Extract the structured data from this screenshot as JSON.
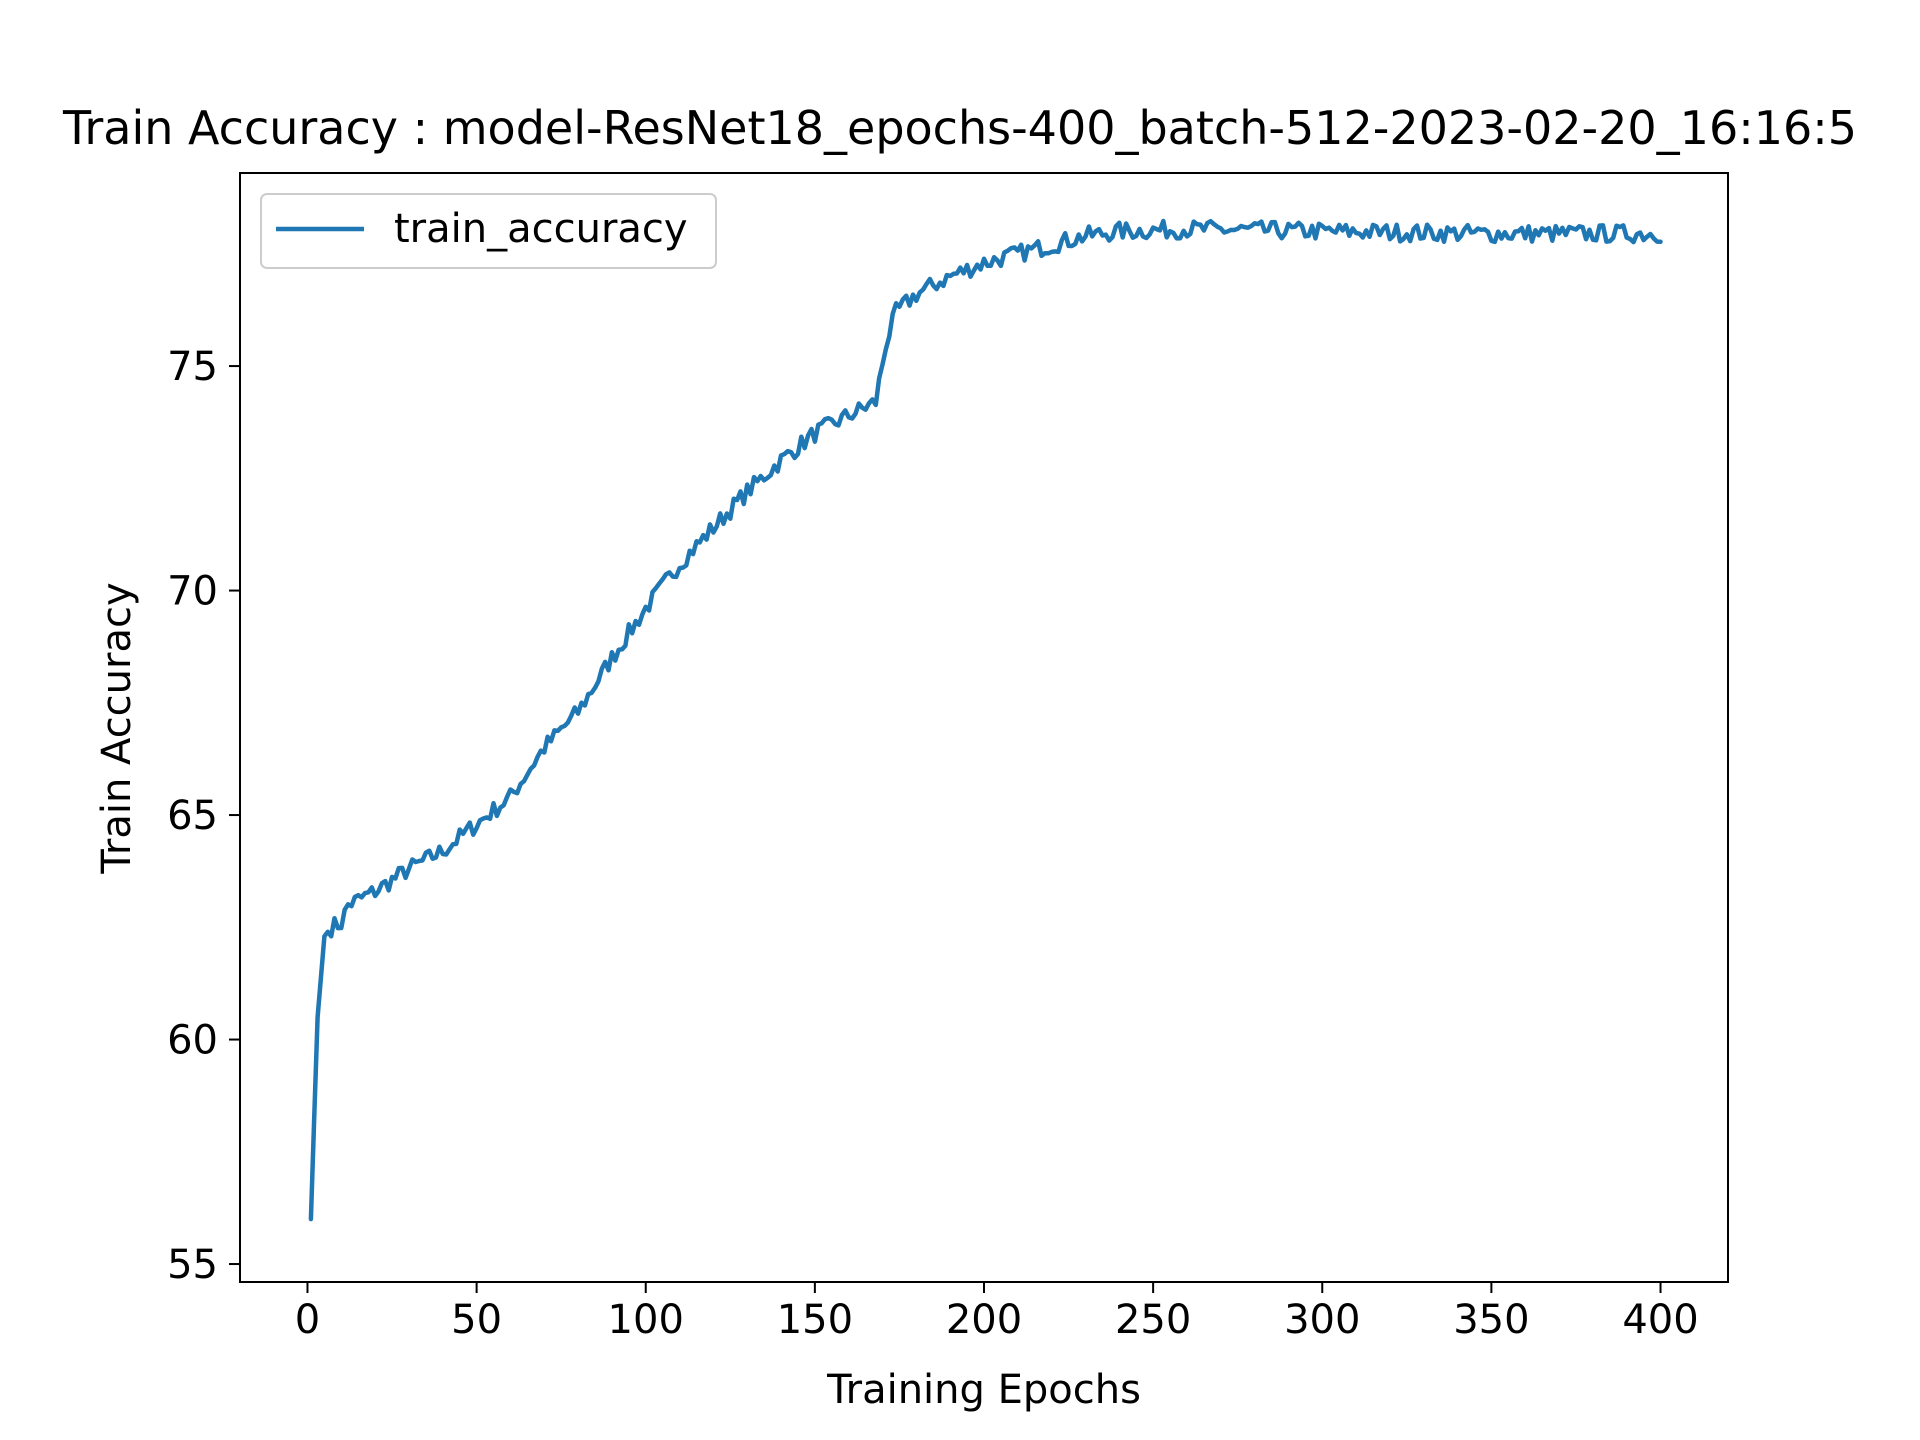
{
  "chart_data": {
    "type": "line",
    "title": "Train Accuracy : model-ResNet18_epochs-400_batch-512-2023-02-20_16:16:5",
    "xlabel": "Training Epochs",
    "ylabel": "Train Accuracy",
    "xlim": [
      -19.95,
      419.95
    ],
    "ylim": [
      54.6,
      79.3
    ],
    "xticks": [
      0,
      50,
      100,
      150,
      200,
      250,
      300,
      350,
      400
    ],
    "yticks": [
      55,
      60,
      65,
      70,
      75
    ],
    "grid": false,
    "legend": {
      "placement": "top-left",
      "entries": [
        "train_accuracy"
      ]
    },
    "colors": {
      "train_accuracy": "#1f77b4"
    },
    "series": [
      {
        "name": "train_accuracy",
        "anchors": [
          [
            1,
            56.0
          ],
          [
            3,
            60.5
          ],
          [
            5,
            62.3
          ],
          [
            7,
            62.5
          ],
          [
            10,
            62.6
          ],
          [
            12,
            63.0
          ],
          [
            20,
            63.3
          ],
          [
            30,
            63.8
          ],
          [
            40,
            64.2
          ],
          [
            50,
            64.8
          ],
          [
            60,
            65.4
          ],
          [
            70,
            66.5
          ],
          [
            80,
            67.3
          ],
          [
            90,
            68.5
          ],
          [
            100,
            69.6
          ],
          [
            110,
            70.6
          ],
          [
            120,
            71.4
          ],
          [
            130,
            72.2
          ],
          [
            140,
            72.9
          ],
          [
            150,
            73.5
          ],
          [
            160,
            73.9
          ],
          [
            168,
            74.2
          ],
          [
            171,
            75.5
          ],
          [
            174,
            76.2
          ],
          [
            180,
            76.6
          ],
          [
            190,
            77.0
          ],
          [
            200,
            77.3
          ],
          [
            210,
            77.5
          ],
          [
            220,
            77.7
          ],
          [
            230,
            77.9
          ],
          [
            240,
            78.0
          ],
          [
            260,
            78.05
          ],
          [
            300,
            78.0
          ],
          [
            350,
            77.95
          ],
          [
            400,
            77.95
          ]
        ],
        "noise_amplitude": 0.2,
        "epochs": [
          1,
          400
        ]
      }
    ]
  }
}
